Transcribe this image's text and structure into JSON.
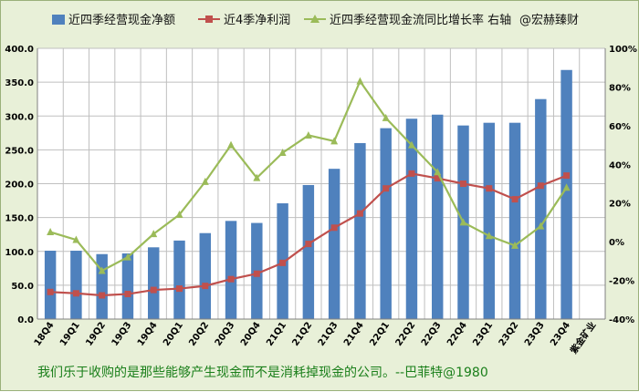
{
  "chart_data": {
    "type": "bar",
    "title": "",
    "categories": [
      "18Q4",
      "19Q1",
      "19Q2",
      "19Q3",
      "19Q4",
      "20Q1",
      "20Q2",
      "20Q3",
      "20Q4",
      "21Q1",
      "21Q2",
      "21Q3",
      "21Q4",
      "22Q1",
      "22Q2",
      "22Q3",
      "22Q4",
      "23Q1",
      "23Q2",
      "23Q3",
      "23Q4",
      "紫金矿业"
    ],
    "series": [
      {
        "name": "近四季经营现金净额",
        "type": "bar",
        "axis": "left",
        "color": "#4f81bd",
        "values": [
          101,
          101,
          96,
          97,
          106,
          116,
          127,
          145,
          142,
          171,
          198,
          222,
          260,
          282,
          296,
          302,
          286,
          290,
          290,
          325,
          368,
          null
        ]
      },
      {
        "name": "近4季净利润",
        "type": "line",
        "axis": "left",
        "color": "#c0504d",
        "marker": "square",
        "values": [
          40,
          38,
          35,
          37,
          43,
          45,
          49,
          59,
          67,
          83,
          111,
          135,
          156,
          193,
          215,
          208,
          200,
          193,
          177,
          197,
          212,
          null
        ]
      },
      {
        "name": "近四季经营现金流同比增长率 右轴",
        "type": "line",
        "axis": "right",
        "color": "#9bbb59",
        "marker": "triangle",
        "values": [
          5,
          1,
          -15,
          -8,
          4,
          14,
          31,
          50,
          33,
          46,
          55,
          52,
          83,
          64,
          50,
          36,
          10,
          3,
          -2,
          8,
          28,
          null
        ]
      }
    ],
    "left_axis": {
      "min": 0,
      "max": 400,
      "ticks": [
        "0.0",
        "50.0",
        "100.0",
        "150.0",
        "200.0",
        "250.0",
        "300.0",
        "350.0",
        "400.0"
      ]
    },
    "right_axis": {
      "min": -40,
      "max": 100,
      "ticks": [
        "-40%",
        "-20%",
        "0%",
        "20%",
        "40%",
        "60%",
        "80%",
        "100%"
      ]
    },
    "grid": true,
    "legend_position": "top"
  },
  "legend": {
    "bar_label": "近四季经营现金净额",
    "profit_label": "近4季净利润",
    "growth_label": "近四季经营现金流同比增长率 右轴",
    "watermark": "@宏赫臻财"
  },
  "footer_quote": "我们乐于收购的是那些能够产生现金而不是消耗掉现金的公司。--巴菲特@1980"
}
